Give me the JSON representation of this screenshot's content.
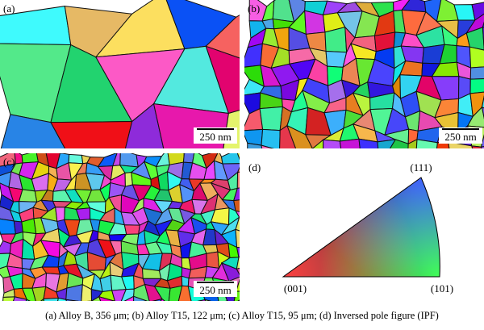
{
  "panels": [
    {
      "label": "(a)",
      "scale_bar": "250 nm"
    },
    {
      "label": "(b)",
      "scale_bar": "250 nm"
    },
    {
      "label": "(c)",
      "scale_bar": "250 nm"
    },
    {
      "label": "(d)",
      "corners": [
        "(111)",
        "(001)",
        "(101)"
      ]
    }
  ],
  "caption": "(a) Alloy B, 356 μm; (b) Alloy T15, 122 μm; (c) Alloy T15, 95 μm; (d) Inversed pole figure (IPF)"
}
